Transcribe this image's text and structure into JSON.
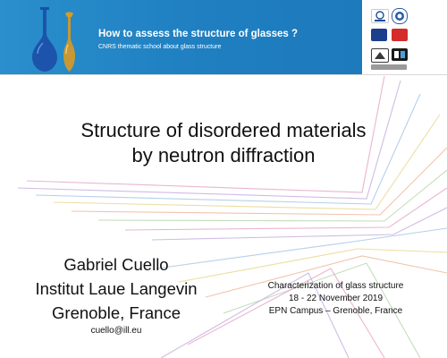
{
  "header": {
    "title": "How to assess the structure of glasses ?",
    "subtitle": "CNRS thematic school about glass structure",
    "logos": [
      "esrf-logo",
      "cnrs-logo",
      "ill-logo",
      "cea-logo",
      "institute-logo",
      "grenoble-logo",
      "partner-logo"
    ]
  },
  "slide": {
    "title_lines": [
      "Structure of disordered materials",
      "by neutron diffraction"
    ],
    "author_lines": [
      "Gabriel Cuello",
      "Institut Laue Langevin",
      "Grenoble, France"
    ],
    "email": "cuello@ill.eu",
    "event_lines": [
      "Characterization of glass structure",
      "18 - 22 November 2019",
      "EPN Campus – Grenoble, France"
    ]
  },
  "colors": {
    "banner": "#1f7fc1",
    "glass_blue": "#1b4fa8",
    "glass_amber": "#d99a22",
    "ray_palette": [
      "#e8a8c8",
      "#c8b0e0",
      "#a8c8e8",
      "#e8d890",
      "#f0b8a0",
      "#b8d8b0"
    ]
  }
}
